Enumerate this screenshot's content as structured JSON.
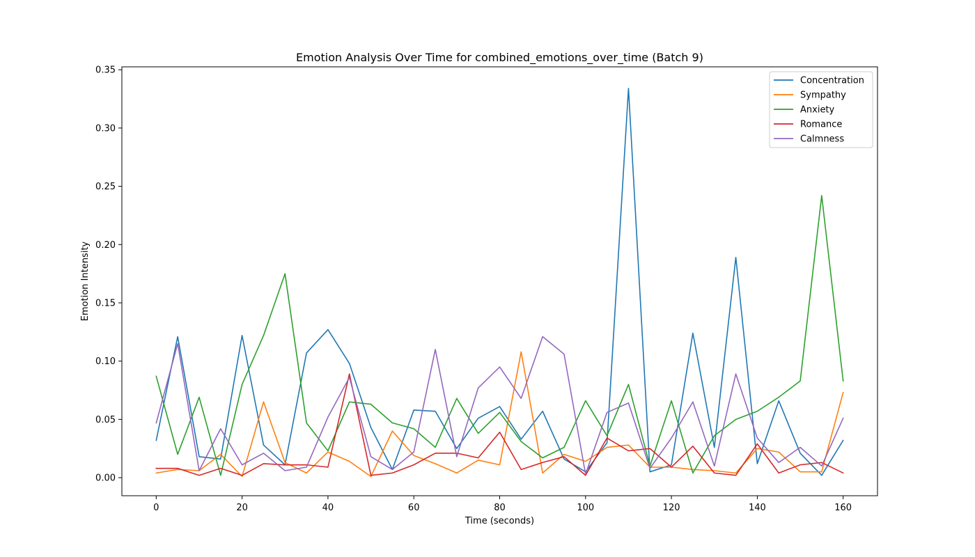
{
  "chart_data": {
    "type": "line",
    "title": "Emotion Analysis Over Time for combined_emotions_over_time (Batch 9)",
    "xlabel": "Time (seconds)",
    "ylabel": "Emotion Intensity",
    "xlim": [
      -8,
      168
    ],
    "ylim": [
      -0.0155,
      0.3525
    ],
    "x_ticks": [
      0,
      20,
      40,
      60,
      80,
      100,
      120,
      140,
      160
    ],
    "x_tick_labels": [
      "0",
      "20",
      "40",
      "60",
      "80",
      "100",
      "120",
      "140",
      "160"
    ],
    "y_ticks": [
      0.0,
      0.05,
      0.1,
      0.15,
      0.2,
      0.25,
      0.3,
      0.35
    ],
    "y_tick_labels": [
      "0.00",
      "0.05",
      "0.10",
      "0.15",
      "0.20",
      "0.25",
      "0.30",
      "0.35"
    ],
    "grid": false,
    "legend_position": "top-right",
    "x": [
      0,
      5,
      10,
      15,
      20,
      25,
      30,
      35,
      40,
      45,
      50,
      55,
      60,
      65,
      70,
      75,
      80,
      85,
      90,
      95,
      100,
      105,
      110,
      115,
      120,
      125,
      130,
      135,
      140,
      145,
      150,
      155,
      160
    ],
    "series": [
      {
        "name": "Concentration",
        "color": "#1f77b4",
        "values": [
          0.032,
          0.121,
          0.018,
          0.016,
          0.122,
          0.028,
          0.011,
          0.107,
          0.127,
          0.098,
          0.043,
          0.007,
          0.058,
          0.057,
          0.025,
          0.051,
          0.061,
          0.033,
          0.057,
          0.016,
          0.005,
          0.03,
          0.334,
          0.005,
          0.011,
          0.124,
          0.026,
          0.189,
          0.012,
          0.066,
          0.021,
          0.002,
          0.032
        ]
      },
      {
        "name": "Sympathy",
        "color": "#ff7f0e",
        "values": [
          0.004,
          0.007,
          0.006,
          0.02,
          0.001,
          0.065,
          0.013,
          0.004,
          0.022,
          0.014,
          0.001,
          0.04,
          0.019,
          0.012,
          0.004,
          0.015,
          0.011,
          0.108,
          0.004,
          0.02,
          0.014,
          0.026,
          0.028,
          0.009,
          0.009,
          0.007,
          0.006,
          0.004,
          0.025,
          0.022,
          0.005,
          0.005,
          0.073
        ]
      },
      {
        "name": "Anxiety",
        "color": "#2ca02c",
        "values": [
          0.087,
          0.02,
          0.069,
          0.002,
          0.08,
          0.122,
          0.175,
          0.047,
          0.023,
          0.065,
          0.063,
          0.047,
          0.042,
          0.026,
          0.068,
          0.038,
          0.056,
          0.031,
          0.017,
          0.026,
          0.066,
          0.036,
          0.08,
          0.01,
          0.066,
          0.004,
          0.036,
          0.05,
          0.057,
          0.069,
          0.083,
          0.242,
          0.083
        ]
      },
      {
        "name": "Romance",
        "color": "#d62728",
        "values": [
          0.008,
          0.008,
          0.002,
          0.008,
          0.002,
          0.012,
          0.011,
          0.011,
          0.009,
          0.089,
          0.002,
          0.004,
          0.011,
          0.021,
          0.021,
          0.017,
          0.039,
          0.007,
          0.013,
          0.018,
          0.002,
          0.034,
          0.023,
          0.025,
          0.009,
          0.027,
          0.004,
          0.002,
          0.029,
          0.004,
          0.011,
          0.013,
          0.004
        ]
      },
      {
        "name": "Calmness",
        "color": "#9467bd",
        "values": [
          0.047,
          0.115,
          0.006,
          0.042,
          0.011,
          0.021,
          0.006,
          0.009,
          0.052,
          0.086,
          0.018,
          0.007,
          0.022,
          0.11,
          0.018,
          0.077,
          0.095,
          0.068,
          0.121,
          0.106,
          0.003,
          0.056,
          0.064,
          0.008,
          0.034,
          0.065,
          0.01,
          0.089,
          0.034,
          0.013,
          0.026,
          0.01,
          0.051
        ]
      }
    ]
  }
}
